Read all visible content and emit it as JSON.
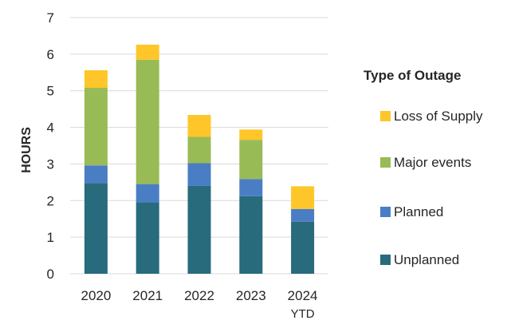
{
  "chart_data": {
    "type": "bar",
    "stacked": true,
    "categories": [
      "2020",
      "2021",
      "2022",
      "2023",
      "2024\nYTD"
    ],
    "series": [
      {
        "name": "Unplanned",
        "color": "#276b7d",
        "values": [
          2.48,
          1.95,
          2.4,
          2.12,
          1.42
        ]
      },
      {
        "name": "Planned",
        "color": "#4a7ec4",
        "values": [
          0.48,
          0.5,
          0.62,
          0.47,
          0.35
        ]
      },
      {
        "name": "Major events",
        "color": "#99bb55",
        "values": [
          2.12,
          3.4,
          0.72,
          1.07,
          0
        ]
      },
      {
        "name": "Loss of Supply",
        "color": "#ffc629",
        "values": [
          0.48,
          0.41,
          0.6,
          0.28,
          0.62
        ]
      }
    ],
    "title": "",
    "xlabel": "",
    "ylabel": "HOURS",
    "ylim": [
      0,
      7
    ],
    "yticks": [
      0,
      1,
      2,
      3,
      4,
      5,
      6,
      7
    ],
    "grid": true,
    "legend": {
      "title": "Type of Outage",
      "placement": "right",
      "order": [
        "Loss of Supply",
        "Major events",
        "Planned",
        "Unplanned"
      ]
    }
  }
}
